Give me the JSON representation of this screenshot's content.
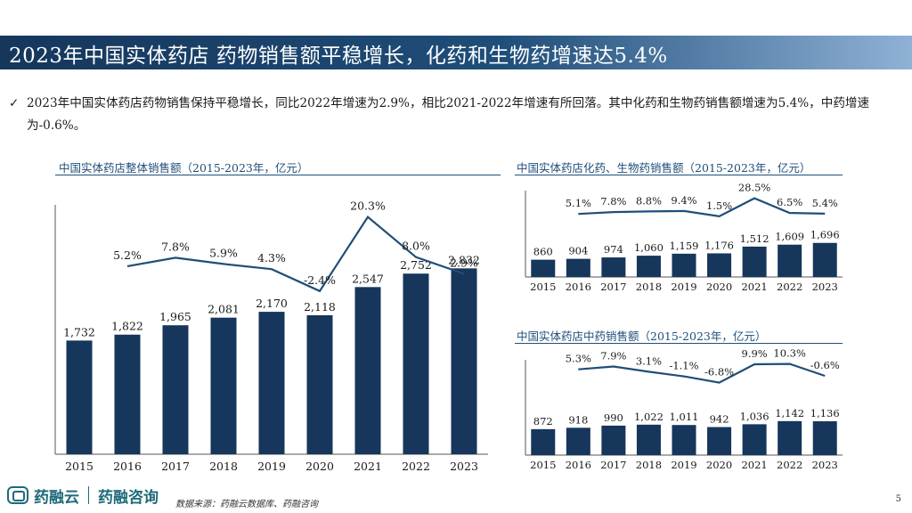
{
  "title": "2023年中国实体药店 药物销售额平稳增长，化药和生物药增速达5.4%",
  "bullet_text": "2023年中国实体药店药物销售保持平稳增长，同比2022年增速为2.9%，相比2021-2022年增速有所回落。其中化药和生物药销售额增速为5.4%，中药增速为-0.6%。",
  "chart_data": [
    {
      "type": "bar",
      "title": "中国实体药店整体销售额（2015-2023年，亿元）",
      "categories": [
        "2015",
        "2016",
        "2017",
        "2018",
        "2019",
        "2020",
        "2021",
        "2022",
        "2023"
      ],
      "values": [
        1732,
        1822,
        1965,
        2081,
        2170,
        2118,
        2547,
        2752,
        2832
      ],
      "value_labels": [
        "1,732",
        "1,822",
        "1,965",
        "2,081",
        "2,170",
        "2,118",
        "2,547",
        "2,752",
        "2,832"
      ],
      "growth": [
        null,
        5.2,
        7.8,
        5.9,
        4.3,
        -2.4,
        20.3,
        8.0,
        2.9
      ],
      "growth_labels": [
        "",
        "5.2%",
        "7.8%",
        "5.9%",
        "4.3%",
        "-2.4%",
        "20.3%",
        "8.0%",
        "2.9%"
      ],
      "ylim": [
        0,
        3800
      ],
      "growth_range": [
        -6,
        24
      ]
    },
    {
      "type": "bar",
      "title": "中国实体药店化药、生物药销售额（2015-2023年，亿元）",
      "categories": [
        "2015",
        "2016",
        "2017",
        "2018",
        "2019",
        "2020",
        "2021",
        "2022",
        "2023"
      ],
      "values": [
        860,
        904,
        974,
        1060,
        1159,
        1176,
        1512,
        1609,
        1696
      ],
      "value_labels": [
        "860",
        "904",
        "974",
        "1,060",
        "1,159",
        "1,176",
        "1,512",
        "1,609",
        "1,696"
      ],
      "growth": [
        null,
        5.1,
        7.8,
        8.8,
        9.4,
        1.5,
        28.5,
        6.5,
        5.4
      ],
      "growth_labels": [
        "",
        "5.1%",
        "7.8%",
        "8.8%",
        "9.4%",
        "1.5%",
        "28.5%",
        "6.5%",
        "5.4%"
      ],
      "ylim": [
        0,
        4300
      ],
      "growth_range": [
        -20,
        36
      ]
    },
    {
      "type": "bar",
      "title": "中国实体药店中药销售额（2015-2023年，亿元）",
      "categories": [
        "2015",
        "2016",
        "2017",
        "2018",
        "2019",
        "2020",
        "2021",
        "2022",
        "2023"
      ],
      "values": [
        872,
        918,
        990,
        1022,
        1011,
        942,
        1036,
        1142,
        1136
      ],
      "value_labels": [
        "872",
        "918",
        "990",
        "1,022",
        "1,011",
        "942",
        "1,036",
        "1,142",
        "1,136"
      ],
      "growth": [
        null,
        5.3,
        7.9,
        3.1,
        -1.1,
        -6.8,
        9.9,
        10.3,
        -0.6
      ],
      "growth_labels": [
        "",
        "5.3%",
        "7.9%",
        "3.1%",
        "-1.1%",
        "-6.8%",
        "9.9%",
        "10.3%",
        "-0.6%"
      ],
      "ylim": [
        0,
        3200
      ],
      "growth_range": [
        -25,
        14
      ]
    }
  ],
  "footer": {
    "logo1": "药融云",
    "logo2": "药融咨询",
    "source": "数据来源：药融云数据库、药融咨询",
    "page": "5"
  },
  "colors": {
    "bar": "#16365c",
    "line": "#1f4e79",
    "title_bar": "#1f4e79"
  }
}
